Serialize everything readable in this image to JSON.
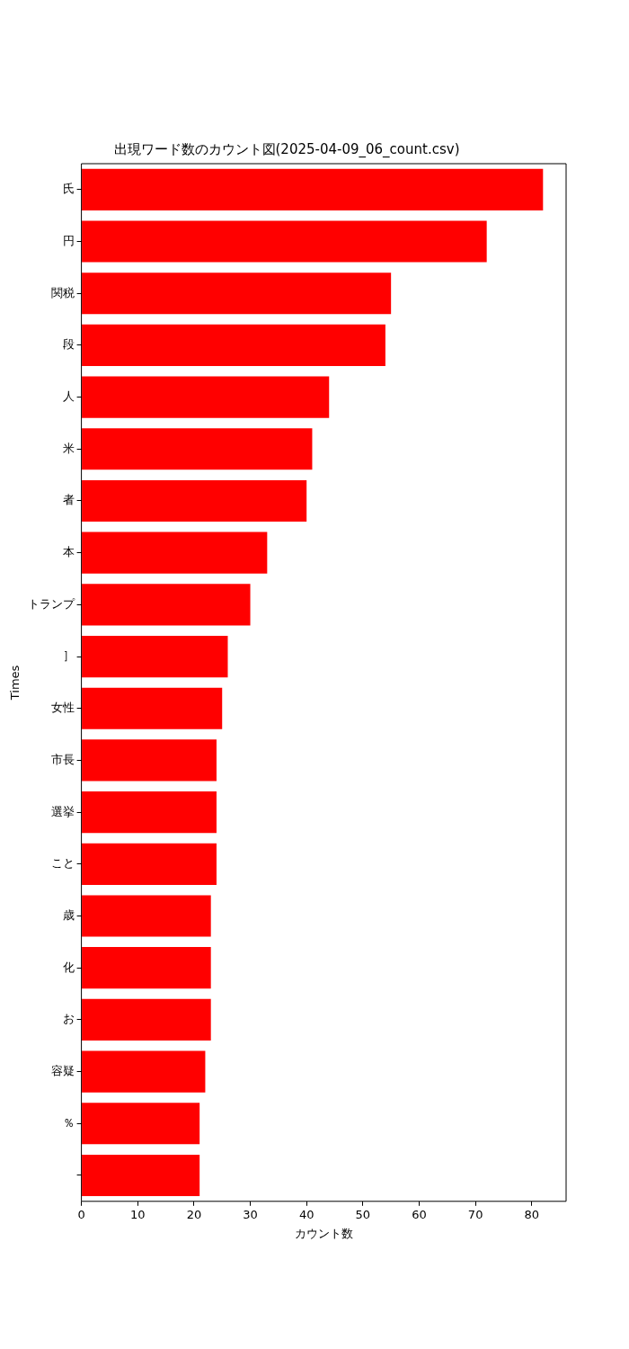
{
  "chart_data": {
    "type": "bar",
    "orientation": "horizontal",
    "title": "出現ワード数のカウント図(2025-04-09_06_count.csv)",
    "xlabel": "カウント数",
    "ylabel": "Times",
    "categories": [
      "氏",
      "円",
      "関税",
      "段",
      "人",
      "米",
      "者",
      "本",
      "トランプ",
      "］",
      "女性",
      "市長",
      "選挙",
      "こと",
      "歳",
      "化",
      "お",
      "容疑",
      "％",
      null
    ],
    "values": [
      82,
      72,
      55,
      54,
      44,
      41,
      40,
      33,
      30,
      26,
      25,
      24,
      24,
      24,
      23,
      23,
      23,
      22,
      21,
      21
    ],
    "color": "#ff0000",
    "xlim": [
      0,
      86.1
    ],
    "xticks": [
      0,
      10,
      20,
      30,
      40,
      50,
      60,
      70,
      80
    ],
    "grid": false,
    "legend": false
  }
}
